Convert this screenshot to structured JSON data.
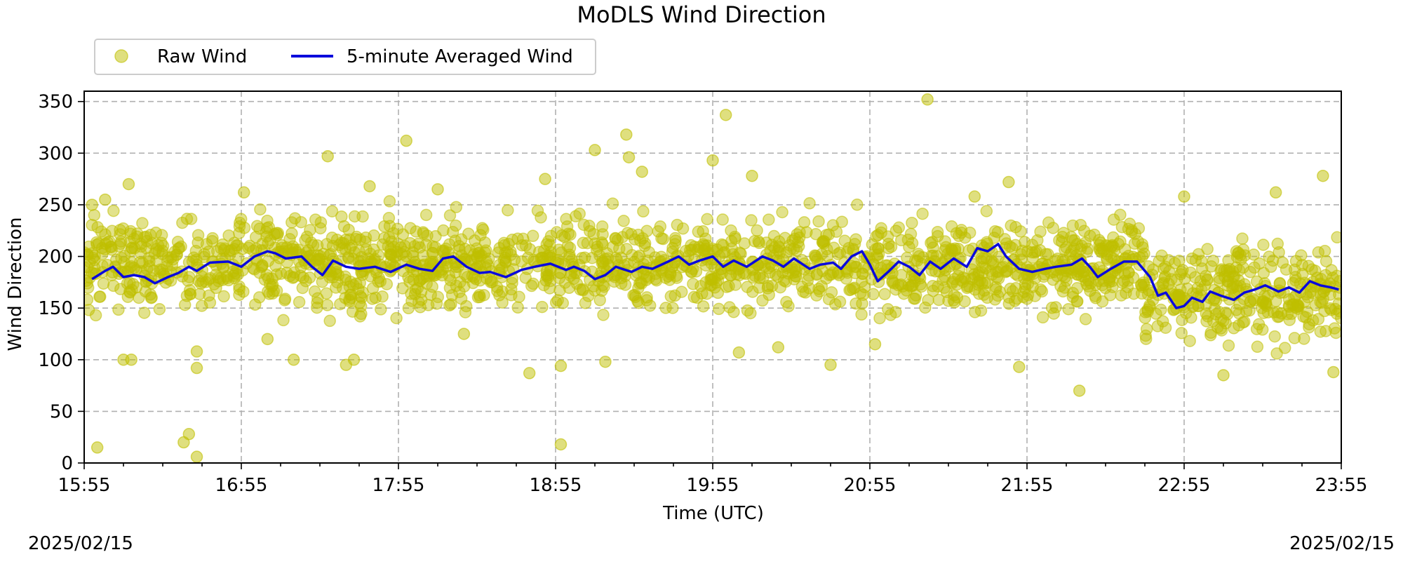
{
  "chart_data": {
    "type": "scatter",
    "title": "MoDLS Wind Direction",
    "xlabel": "Time (UTC)",
    "ylabel": "Wind Direction",
    "xlim": [
      "15:55",
      "23:55"
    ],
    "ylim": [
      0,
      360
    ],
    "x_ticks": [
      "15:55",
      "16:55",
      "17:55",
      "18:55",
      "19:55",
      "20:55",
      "21:55",
      "22:55",
      "23:55"
    ],
    "y_ticks": [
      0,
      50,
      100,
      150,
      200,
      250,
      300,
      350
    ],
    "grid": true,
    "legend_position": "top-left, above plot",
    "date_left": "2025/02/15",
    "date_right": "2025/02/15",
    "series": [
      {
        "name": "Raw Wind",
        "style": "scatter",
        "color": "#bfbf00",
        "points": [
          [
            "15:58",
            250
          ],
          [
            "16:00",
            15
          ],
          [
            "16:03",
            255
          ],
          [
            "16:10",
            100
          ],
          [
            "16:12",
            270
          ],
          [
            "16:13",
            100
          ],
          [
            "16:33",
            20
          ],
          [
            "16:35",
            28
          ],
          [
            "16:38",
            6
          ],
          [
            "16:38",
            92
          ],
          [
            "16:38",
            108
          ],
          [
            "16:56",
            262
          ],
          [
            "17:05",
            120
          ],
          [
            "17:15",
            100
          ],
          [
            "17:28",
            297
          ],
          [
            "17:35",
            95
          ],
          [
            "17:38",
            100
          ],
          [
            "17:44",
            268
          ],
          [
            "17:58",
            312
          ],
          [
            "18:10",
            265
          ],
          [
            "18:20",
            125
          ],
          [
            "18:45",
            87
          ],
          [
            "18:51",
            275
          ],
          [
            "18:57",
            18
          ],
          [
            "18:57",
            94
          ],
          [
            "19:10",
            303
          ],
          [
            "19:14",
            98
          ],
          [
            "19:22",
            318
          ],
          [
            "19:23",
            296
          ],
          [
            "19:28",
            282
          ],
          [
            "19:55",
            293
          ],
          [
            "20:00",
            337
          ],
          [
            "20:05",
            107
          ],
          [
            "20:10",
            278
          ],
          [
            "20:20",
            112
          ],
          [
            "20:40",
            95
          ],
          [
            "20:57",
            115
          ],
          [
            "21:17",
            352
          ],
          [
            "21:35",
            258
          ],
          [
            "21:48",
            272
          ],
          [
            "21:52",
            93
          ],
          [
            "22:15",
            70
          ],
          [
            "22:55",
            258
          ],
          [
            "23:10",
            85
          ],
          [
            "23:30",
            262
          ],
          [
            "23:48",
            278
          ],
          [
            "23:52",
            88
          ]
        ],
        "band_segments": [
          {
            "from": "15:55",
            "to": "22:40",
            "lo": 130,
            "hi": 255
          },
          {
            "from": "22:40",
            "to": "23:55",
            "lo": 95,
            "hi": 235
          }
        ]
      },
      {
        "name": "5-minute Averaged Wind",
        "style": "line",
        "color": "#0a0adc",
        "points": [
          [
            "15:58",
            178
          ],
          [
            "16:03",
            186
          ],
          [
            "16:06",
            190
          ],
          [
            "16:10",
            180
          ],
          [
            "16:14",
            182
          ],
          [
            "16:18",
            180
          ],
          [
            "16:22",
            174
          ],
          [
            "16:27",
            180
          ],
          [
            "16:31",
            184
          ],
          [
            "16:35",
            190
          ],
          [
            "16:38",
            186
          ],
          [
            "16:43",
            194
          ],
          [
            "16:50",
            195
          ],
          [
            "16:55",
            190
          ],
          [
            "17:00",
            200
          ],
          [
            "17:05",
            205
          ],
          [
            "17:08",
            203
          ],
          [
            "17:12",
            198
          ],
          [
            "17:18",
            200
          ],
          [
            "17:22",
            190
          ],
          [
            "17:26",
            182
          ],
          [
            "17:30",
            196
          ],
          [
            "17:35",
            190
          ],
          [
            "17:40",
            188
          ],
          [
            "17:46",
            190
          ],
          [
            "17:52",
            185
          ],
          [
            "17:58",
            192
          ],
          [
            "18:03",
            188
          ],
          [
            "18:08",
            186
          ],
          [
            "18:12",
            198
          ],
          [
            "18:16",
            200
          ],
          [
            "18:21",
            190
          ],
          [
            "18:26",
            184
          ],
          [
            "18:30",
            185
          ],
          [
            "18:36",
            180
          ],
          [
            "18:42",
            187
          ],
          [
            "18:47",
            190
          ],
          [
            "18:53",
            193
          ],
          [
            "18:59",
            187
          ],
          [
            "19:02",
            190
          ],
          [
            "19:06",
            186
          ],
          [
            "19:10",
            178
          ],
          [
            "19:14",
            182
          ],
          [
            "19:18",
            190
          ],
          [
            "19:24",
            185
          ],
          [
            "19:28",
            190
          ],
          [
            "19:32",
            188
          ],
          [
            "19:38",
            195
          ],
          [
            "19:42",
            200
          ],
          [
            "19:46",
            192
          ],
          [
            "19:50",
            196
          ],
          [
            "19:55",
            200
          ],
          [
            "19:59",
            190
          ],
          [
            "20:03",
            196
          ],
          [
            "20:08",
            190
          ],
          [
            "20:14",
            200
          ],
          [
            "20:18",
            196
          ],
          [
            "20:22",
            190
          ],
          [
            "20:26",
            198
          ],
          [
            "20:32",
            188
          ],
          [
            "20:36",
            192
          ],
          [
            "20:41",
            194
          ],
          [
            "20:44",
            188
          ],
          [
            "20:48",
            200
          ],
          [
            "20:52",
            205
          ],
          [
            "20:55",
            192
          ],
          [
            "20:58",
            176
          ],
          [
            "21:02",
            185
          ],
          [
            "21:06",
            195
          ],
          [
            "21:10",
            190
          ],
          [
            "21:14",
            182
          ],
          [
            "21:18",
            195
          ],
          [
            "21:22",
            188
          ],
          [
            "21:27",
            198
          ],
          [
            "21:32",
            190
          ],
          [
            "21:36",
            208
          ],
          [
            "21:40",
            205
          ],
          [
            "21:44",
            212
          ],
          [
            "21:47",
            200
          ],
          [
            "21:52",
            188
          ],
          [
            "21:57",
            185
          ],
          [
            "22:02",
            188
          ],
          [
            "22:06",
            190
          ],
          [
            "22:12",
            192
          ],
          [
            "22:16",
            198
          ],
          [
            "22:19",
            190
          ],
          [
            "22:22",
            180
          ],
          [
            "22:27",
            188
          ],
          [
            "22:32",
            195
          ],
          [
            "22:37",
            195
          ],
          [
            "22:42",
            180
          ],
          [
            "22:45",
            162
          ],
          [
            "22:48",
            165
          ],
          [
            "22:52",
            150
          ],
          [
            "22:55",
            152
          ],
          [
            "22:58",
            160
          ],
          [
            "23:02",
            156
          ],
          [
            "23:05",
            166
          ],
          [
            "23:09",
            162
          ],
          [
            "23:14",
            158
          ],
          [
            "23:18",
            165
          ],
          [
            "23:22",
            168
          ],
          [
            "23:26",
            172
          ],
          [
            "23:31",
            166
          ],
          [
            "23:35",
            170
          ],
          [
            "23:39",
            165
          ],
          [
            "23:43",
            176
          ],
          [
            "23:47",
            172
          ],
          [
            "23:51",
            170
          ],
          [
            "23:54",
            168
          ]
        ]
      }
    ]
  }
}
